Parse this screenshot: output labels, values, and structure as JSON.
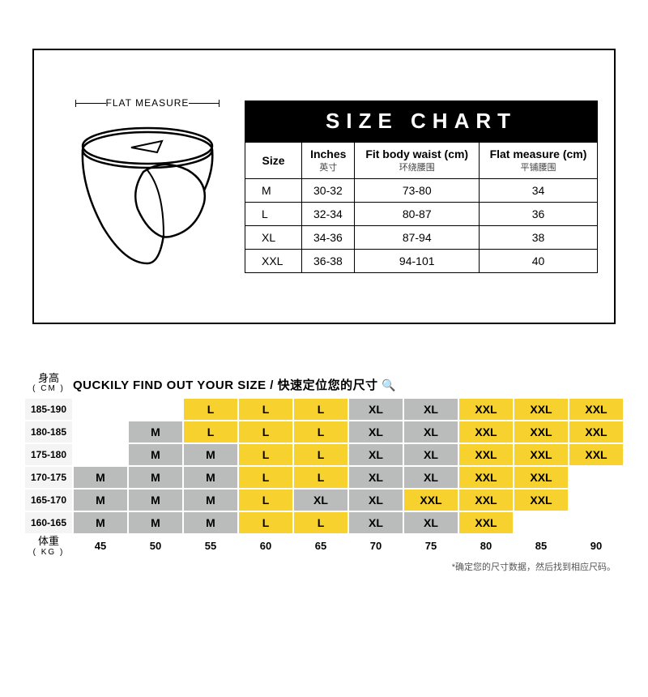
{
  "colors": {
    "yellow": "#f7d22e",
    "gray": "#babcbb",
    "empty": "#ffffff",
    "headerBg": "#f4f4f4",
    "black": "#000000",
    "white": "#ffffff"
  },
  "top": {
    "flatMeasureLabel": "FLAT MEASURE",
    "title": "SIZE CHART",
    "columns": [
      {
        "label": "Size",
        "sub": ""
      },
      {
        "label": "Inches",
        "sub": "英寸"
      },
      {
        "label": "Fit body waist (cm)",
        "sub": "环绕腰围"
      },
      {
        "label": "Flat measure (cm)",
        "sub": "平铺腰围"
      }
    ],
    "rows": [
      {
        "size": "M",
        "inches": "30-32",
        "waist": "73-80",
        "flat": "34"
      },
      {
        "size": "L",
        "inches": "32-34",
        "waist": "80-87",
        "flat": "36"
      },
      {
        "size": "XL",
        "inches": "34-36",
        "waist": "87-94",
        "flat": "38"
      },
      {
        "size": "XXL",
        "inches": "36-38",
        "waist": "94-101",
        "flat": "40"
      }
    ]
  },
  "bottom": {
    "heightLabel": "身高",
    "heightUnit": "( CM )",
    "weightLabel": "体重",
    "weightUnit": "( KG )",
    "title": "QUCKILY FIND OUT YOUR SIZE / 快速定位您的尺寸 ",
    "magnifier": "🔍",
    "weights": [
      "45",
      "50",
      "55",
      "60",
      "65",
      "70",
      "75",
      "80",
      "85",
      "90"
    ],
    "heights": [
      "185-190",
      "180-185",
      "175-180",
      "170-175",
      "165-170",
      "160-165"
    ],
    "grid": [
      [
        "",
        "",
        "L",
        "L",
        "L",
        "XL",
        "XL",
        "XXL",
        "XXL",
        "XXL"
      ],
      [
        "",
        "M",
        "L",
        "L",
        "L",
        "XL",
        "XL",
        "XXL",
        "XXL",
        "XXL"
      ],
      [
        "",
        "M",
        "M",
        "L",
        "L",
        "XL",
        "XL",
        "XXL",
        "XXL",
        "XXL"
      ],
      [
        "M",
        "M",
        "M",
        "L",
        "L",
        "XL",
        "XL",
        "XXL",
        "XXL",
        ""
      ],
      [
        "M",
        "M",
        "M",
        "L",
        "XL",
        "XL",
        "XXL",
        "XXL",
        "XXL",
        ""
      ],
      [
        "M",
        "M",
        "M",
        "L",
        "L",
        "XL",
        "XL",
        "XXL",
        "",
        ""
      ]
    ],
    "cellColors": [
      [
        "empty",
        "empty",
        "yellow",
        "yellow",
        "yellow",
        "gray",
        "gray",
        "yellow",
        "yellow",
        "yellow"
      ],
      [
        "empty",
        "gray",
        "yellow",
        "yellow",
        "yellow",
        "gray",
        "gray",
        "yellow",
        "yellow",
        "yellow"
      ],
      [
        "empty",
        "gray",
        "gray",
        "yellow",
        "yellow",
        "gray",
        "gray",
        "yellow",
        "yellow",
        "yellow"
      ],
      [
        "gray",
        "gray",
        "gray",
        "yellow",
        "yellow",
        "gray",
        "gray",
        "yellow",
        "yellow",
        "empty"
      ],
      [
        "gray",
        "gray",
        "gray",
        "yellow",
        "gray",
        "gray",
        "yellow",
        "yellow",
        "yellow",
        "empty"
      ],
      [
        "gray",
        "gray",
        "gray",
        "yellow",
        "yellow",
        "gray",
        "gray",
        "yellow",
        "empty",
        "empty"
      ]
    ],
    "footnote": "*确定您的尺寸数据，然后找到相应尺码。"
  }
}
